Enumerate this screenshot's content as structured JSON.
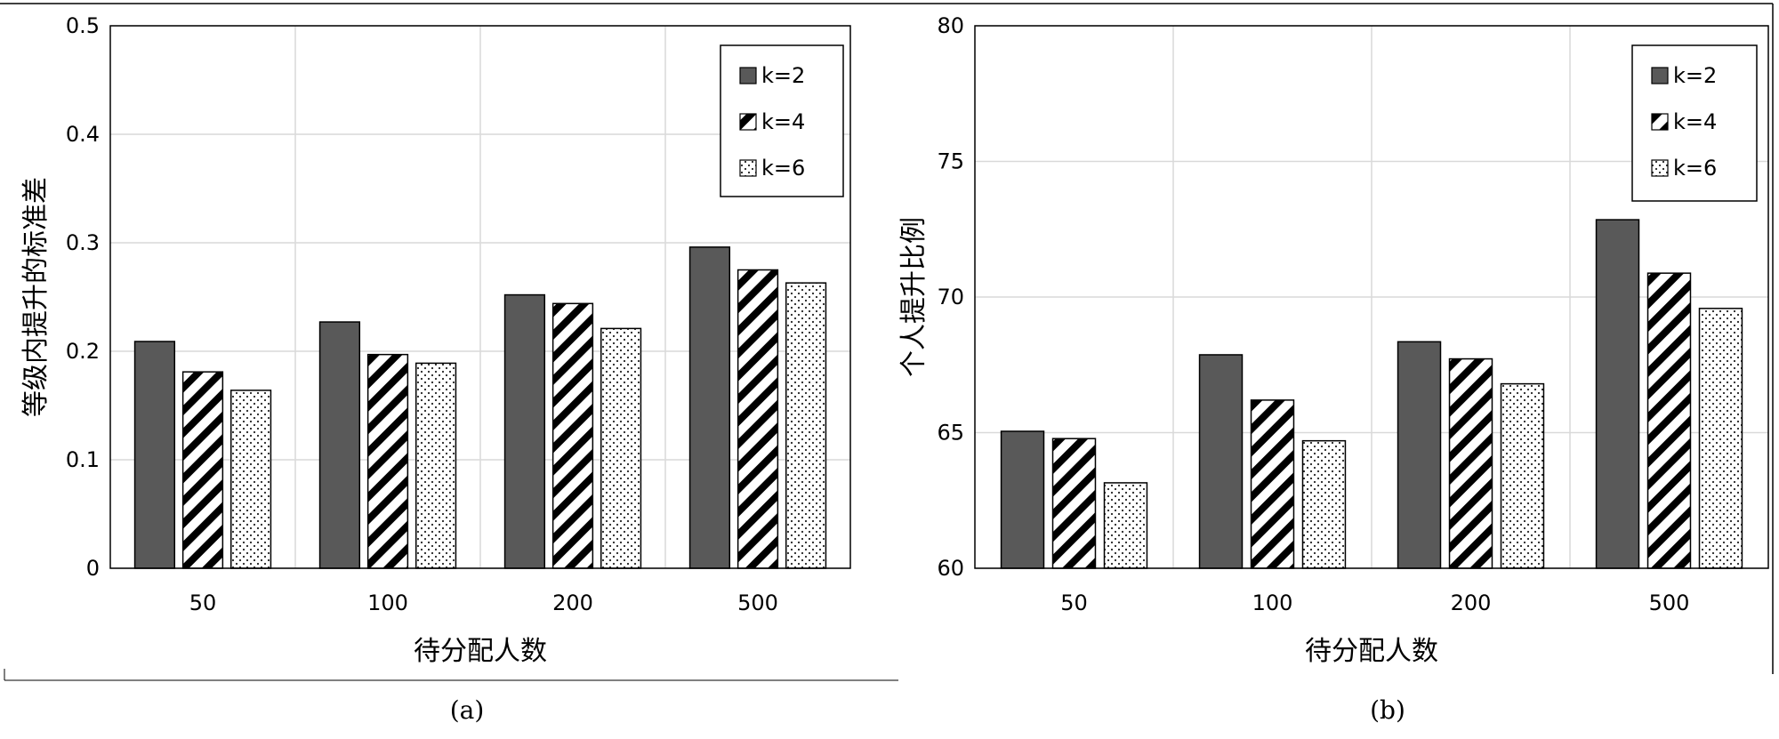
{
  "chart_data": [
    {
      "type": "bar",
      "caption": "(a)",
      "categories": [
        "50",
        "100",
        "200",
        "500"
      ],
      "series": [
        {
          "name": "k=2",
          "values": [
            0.209,
            0.227,
            0.252,
            0.296
          ]
        },
        {
          "name": "k=4",
          "values": [
            0.181,
            0.197,
            0.244,
            0.275
          ]
        },
        {
          "name": "k=6",
          "values": [
            0.164,
            0.189,
            0.221,
            0.263
          ]
        }
      ],
      "xlabel": "待分配人数",
      "ylabel": "等级内提升的标准差",
      "ylim": [
        0,
        0.5
      ],
      "yticks": [
        "0",
        "0.1",
        "0.2",
        "0.3",
        "0.4",
        "0.5"
      ],
      "grid": true,
      "legend": "top-right"
    },
    {
      "type": "bar",
      "caption": "(b)",
      "categories": [
        "50",
        "100",
        "200",
        "500"
      ],
      "series": [
        {
          "name": "k=2",
          "values": [
            65.05,
            67.87,
            68.35,
            72.85
          ]
        },
        {
          "name": "k=4",
          "values": [
            64.78,
            66.2,
            67.72,
            70.88
          ]
        },
        {
          "name": "k=6",
          "values": [
            63.15,
            64.7,
            66.8,
            69.58
          ]
        }
      ],
      "xlabel": "待分配人数",
      "ylabel": "个人提升比例",
      "ylim": [
        60,
        80
      ],
      "yticks": [
        "60",
        "65",
        "70",
        "75",
        "80"
      ],
      "grid": true,
      "legend": "top-right"
    }
  ],
  "colors": {
    "k2_fill": "#595959",
    "stroke": "#000000",
    "grid": "#d9d9d9"
  },
  "series_patterns": [
    "solid-dark-gray",
    "diagonal-stripes",
    "dots"
  ]
}
